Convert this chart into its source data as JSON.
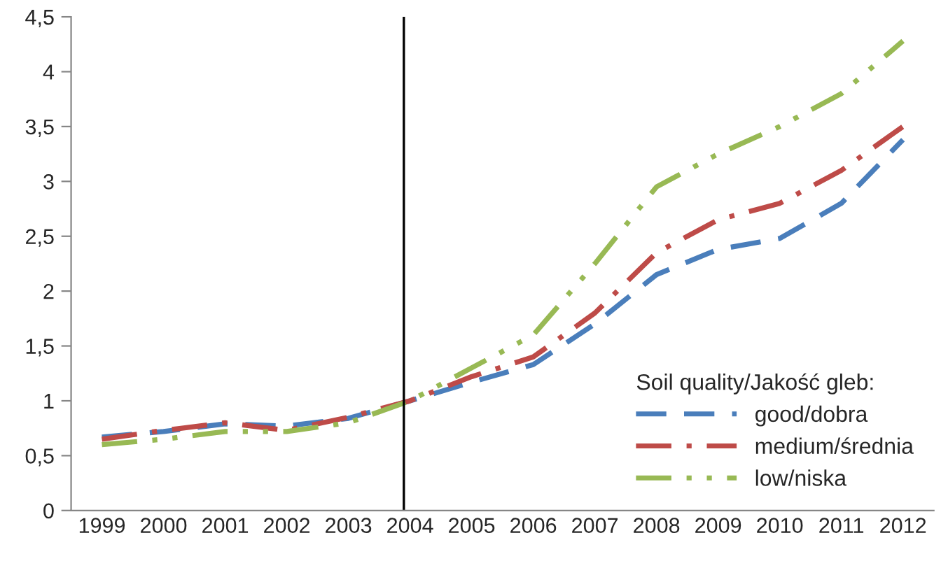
{
  "chart_data": {
    "type": "line",
    "categories": [
      "1999",
      "2000",
      "2001",
      "2002",
      "2003",
      "2004",
      "2005",
      "2006",
      "2007",
      "2008",
      "2009",
      "2010",
      "2011",
      "2012"
    ],
    "series": [
      {
        "name": "good/dobra",
        "color": "#4a7ebb",
        "line_style": "dashed",
        "values": [
          0.67,
          0.72,
          0.79,
          0.77,
          0.84,
          1.0,
          1.17,
          1.33,
          1.7,
          2.15,
          2.38,
          2.48,
          2.8,
          3.38
        ]
      },
      {
        "name": "medium/średnia",
        "color": "#be4b48",
        "line_style": "dashdot",
        "values": [
          0.65,
          0.73,
          0.8,
          0.73,
          0.85,
          1.0,
          1.22,
          1.4,
          1.8,
          2.35,
          2.65,
          2.8,
          3.1,
          3.5
        ]
      },
      {
        "name": "low/niska",
        "color": "#98b954",
        "line_style": "dashdotdot",
        "values": [
          0.6,
          0.65,
          0.72,
          0.72,
          0.8,
          1.0,
          1.3,
          1.6,
          2.25,
          2.95,
          3.25,
          3.5,
          3.8,
          4.28
        ]
      }
    ],
    "legend_title": "Soil quality/Jakość gleb:",
    "legend": "bottom right",
    "ylim": [
      0,
      4.5
    ],
    "yticks": [
      {
        "value": 0,
        "label": "0"
      },
      {
        "value": 0.5,
        "label": "0,5"
      },
      {
        "value": 1,
        "label": "1"
      },
      {
        "value": 1.5,
        "label": "1,5"
      },
      {
        "value": 2,
        "label": "2"
      },
      {
        "value": 2.5,
        "label": "2,5"
      },
      {
        "value": 3,
        "label": "3"
      },
      {
        "value": 3.5,
        "label": "3,5"
      },
      {
        "value": 4,
        "label": "4"
      },
      {
        "value": 4.5,
        "label": "4,5"
      }
    ],
    "ref_lines": [
      {
        "axis": "x",
        "value": "2004",
        "color": "#000000"
      }
    ],
    "grid": false
  }
}
